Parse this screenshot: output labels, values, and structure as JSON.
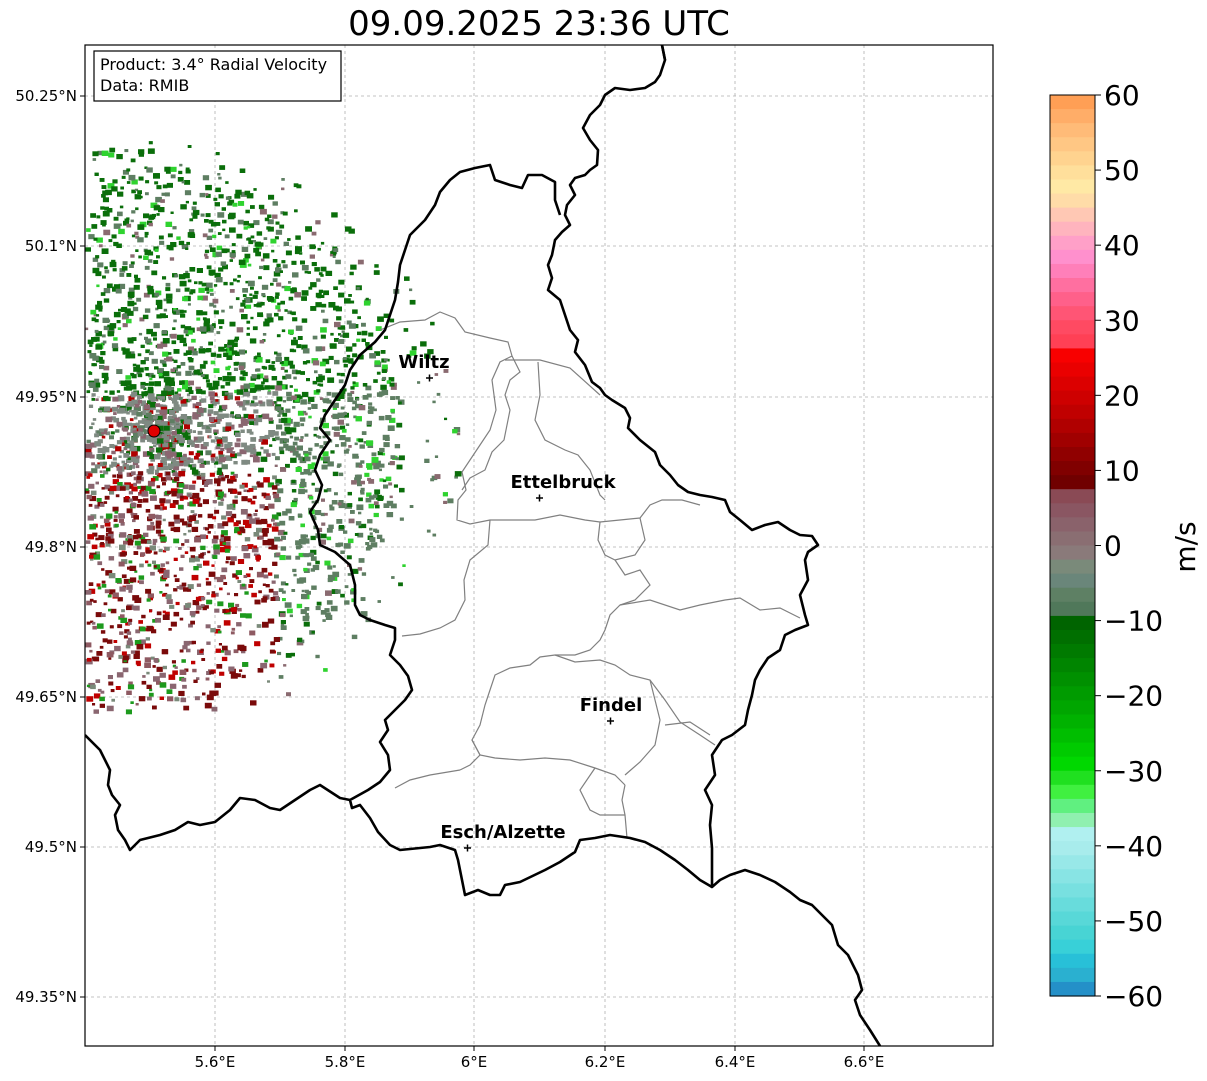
{
  "title": "09.09.2025 23:36 UTC",
  "info_box": {
    "product": "Product: 3.4° Radial Velocity",
    "data": "Data: RMIB"
  },
  "axes": {
    "lat_ticks": [
      "50.25°N",
      "50.1°N",
      "49.95°N",
      "49.8°N",
      "49.65°N",
      "49.5°N",
      "49.35°N"
    ],
    "lon_ticks": [
      "5.6°E",
      "5.8°E",
      "6°E",
      "6.2°E",
      "6.4°E",
      "6.6°E"
    ]
  },
  "cities": [
    {
      "name": "Wiltz"
    },
    {
      "name": "Ettelbruck"
    },
    {
      "name": "Findel"
    },
    {
      "name": "Esch/Alzette"
    }
  ],
  "colorbar": {
    "label": "m/s",
    "min": -60,
    "max": 60,
    "ticks": [
      "60",
      "50",
      "40",
      "30",
      "20",
      "10",
      "0",
      "−10",
      "−20",
      "−30",
      "−40",
      "−50",
      "−60"
    ]
  },
  "colors": {
    "border": "#000000",
    "canton_lines": "#808080",
    "radar_site": "#e00000"
  }
}
